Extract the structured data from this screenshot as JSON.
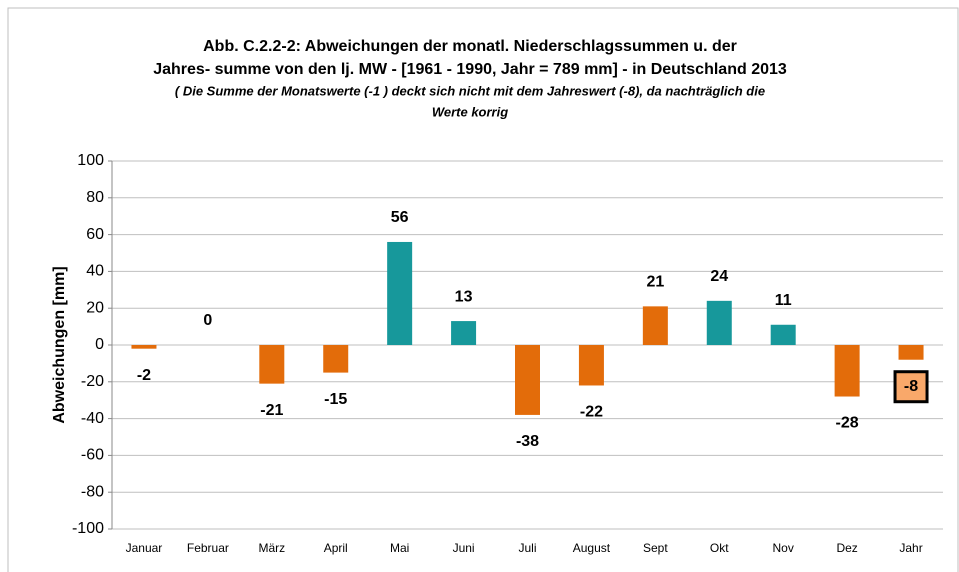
{
  "chart_data": {
    "type": "bar",
    "title": [
      "Abb. C.2.2-2: Abweichungen der monatl. Niederschlagssummen u. der",
      "Jahres- summe von den lj. MW - [1961 - 1990, Jahr = 789 mm] - in Deutschland 2013"
    ],
    "subtitle": [
      "( Die Summe der Monatswerte (-1 ) deckt sich nicht mit dem Jahreswert (-8), da nachträglich die",
      "Werte korrig"
    ],
    "y_label": "Abweichungen [mm]",
    "categories": [
      "Januar",
      "Februar",
      "März",
      "April",
      "Mai",
      "Juni",
      "Juli",
      "August",
      "Sept",
      "Okt",
      "Nov",
      "Dez",
      "Jahr"
    ],
    "values": [
      -2,
      0,
      -21,
      -15,
      56,
      13,
      -38,
      -22,
      21,
      24,
      11,
      -28,
      -8
    ],
    "colors": [
      "#e36c0a",
      "#e36c0a",
      "#e36c0a",
      "#e36c0a",
      "#17989b",
      "#17989b",
      "#e36c0a",
      "#e36c0a",
      "#e36c0a",
      "#17989b",
      "#17989b",
      "#e36c0a",
      "#e36c0a"
    ],
    "highlighted_category": "Jahr",
    "highlight_color": "#f9a86a",
    "ylim": [
      -100,
      100
    ],
    "yticks": [
      -100,
      -80,
      -60,
      -40,
      -20,
      0,
      20,
      40,
      60,
      80,
      100
    ],
    "grid": true
  }
}
